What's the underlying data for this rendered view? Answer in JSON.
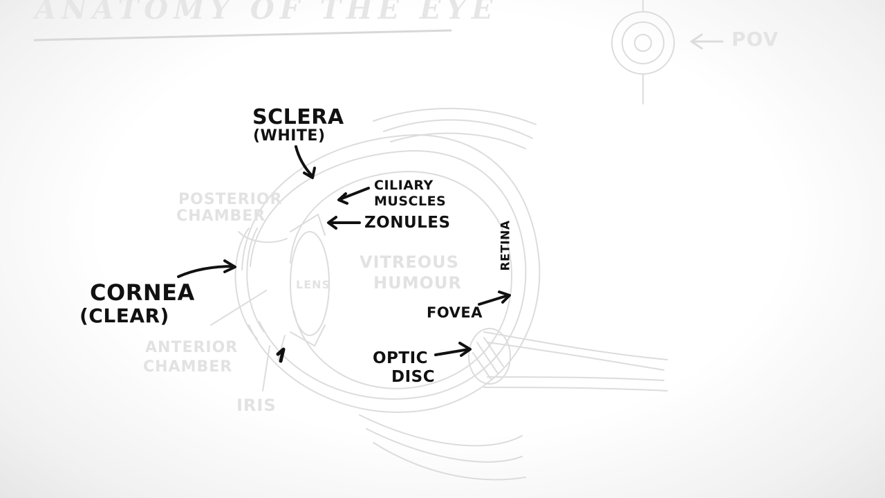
{
  "title": "ANATOMY OF THE EYE",
  "pov_label": "POV",
  "labels": {
    "sclera": "SCLERA",
    "sclera_note": "(WHITE)",
    "ciliary_1": "CILIARY",
    "ciliary_2": "MUSCLES",
    "zonules": "ZONULES",
    "cornea": "CORNEA",
    "cornea_note": "(CLEAR)",
    "retina": "RETINA",
    "fovea": "FOVEA",
    "optic_1": "OPTIC",
    "optic_2": "DISC"
  },
  "faint_labels": {
    "posterior_1": "POSTERIOR",
    "posterior_2": "CHAMBER",
    "anterior_1": "ANTERIOR",
    "anterior_2": "CHAMBER",
    "lens": "LENS",
    "vitreous_1": "VITREOUS",
    "vitreous_2": "HUMOUR",
    "iris": "IRIS"
  }
}
